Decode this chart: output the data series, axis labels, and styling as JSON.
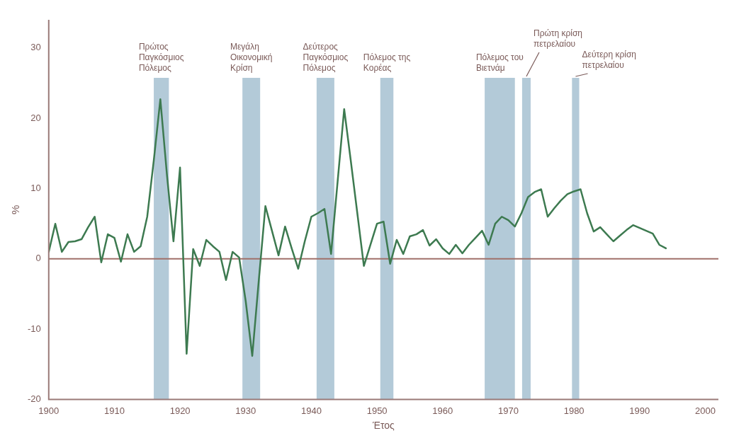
{
  "chart_data": {
    "type": "line",
    "xlabel": "Έτος",
    "ylabel": "%",
    "x": [
      1900,
      1901,
      1902,
      1903,
      1904,
      1905,
      1906,
      1907,
      1908,
      1909,
      1910,
      1911,
      1912,
      1913,
      1914,
      1915,
      1916,
      1917,
      1918,
      1919,
      1920,
      1921,
      1922,
      1923,
      1924,
      1925,
      1926,
      1927,
      1928,
      1929,
      1930,
      1931,
      1932,
      1933,
      1934,
      1935,
      1936,
      1937,
      1938,
      1939,
      1940,
      1941,
      1942,
      1943,
      1944,
      1945,
      1946,
      1947,
      1948,
      1949,
      1950,
      1951,
      1952,
      1953,
      1954,
      1955,
      1956,
      1957,
      1958,
      1959,
      1960,
      1961,
      1962,
      1963,
      1964,
      1965,
      1966,
      1967,
      1968,
      1969,
      1970,
      1971,
      1972,
      1973,
      1974,
      1975,
      1976,
      1977,
      1978,
      1979,
      1980,
      1981,
      1982,
      1983,
      1984,
      1985,
      1986,
      1987,
      1988,
      1989,
      1990,
      1991,
      1992,
      1993,
      1994
    ],
    "series": [
      {
        "color": "#3d7a50",
        "values": [
          1,
          5,
          1,
          2.4,
          2.5,
          2.8,
          4.5,
          6,
          -0.5,
          3.5,
          3,
          -0.4,
          3.5,
          1,
          1.8,
          6,
          14,
          22.7,
          12,
          2.5,
          13,
          -13.5,
          1.4,
          -1,
          2.7,
          1.8,
          1,
          -3,
          1,
          0.2,
          -6,
          -13.8,
          -3,
          7.5,
          4,
          0.5,
          4.6,
          1.5,
          -1.4,
          2.5,
          6,
          6.5,
          7.1,
          0.7,
          11,
          21.3,
          14,
          6.5,
          -1,
          2,
          5,
          5.3,
          -0.7,
          2.7,
          0.7,
          3.2,
          3.5,
          4.1,
          1.9,
          2.8,
          1.5,
          0.7,
          2,
          0.8,
          2,
          3,
          4,
          2,
          5,
          6,
          5.5,
          4.6,
          6.5,
          8.8,
          9.5,
          9.9,
          6,
          7.2,
          8.3,
          9.2,
          9.6,
          9.9,
          6.5,
          3.9,
          4.5,
          3.5,
          2.5,
          3.3,
          4.1,
          4.8,
          4.4,
          4,
          3.6,
          2,
          1.5
        ]
      }
    ],
    "xlim": [
      1900,
      2002
    ],
    "xticks": [
      1900,
      1910,
      1920,
      1930,
      1940,
      1950,
      1960,
      1970,
      1980,
      1990,
      2000
    ],
    "ylim": [
      -20,
      34
    ],
    "yticks": [
      -20,
      -10,
      0,
      10,
      20,
      30
    ],
    "grid": false,
    "legend": false,
    "marker": "none",
    "line_style": "solid",
    "ref_lines": [
      {
        "axis": "y",
        "value": 0,
        "color": "#a0706a"
      }
    ],
    "bands": [
      {
        "axis": "x",
        "from": 1916,
        "to": 1918.3,
        "label": "Πρώτος Παγκόσμιος Πόλεμος",
        "color": "#b3cad8"
      },
      {
        "axis": "x",
        "from": 1929.5,
        "to": 1932.2,
        "label": "Μεγάλη Οικονομική Κρίση",
        "color": "#b3cad8"
      },
      {
        "axis": "x",
        "from": 1940.8,
        "to": 1943.5,
        "label": "Δεύτερος Παγκόσμιος Πόλεμος",
        "color": "#b3cad8"
      },
      {
        "axis": "x",
        "from": 1950.5,
        "to": 1952.5,
        "label": "Πόλεμος της Κορέας",
        "color": "#b3cad8"
      },
      {
        "axis": "x",
        "from": 1966.4,
        "to": 1971,
        "label": "Πόλεμος του Βιετνάμ",
        "color": "#b3cad8"
      },
      {
        "axis": "x",
        "from": 1972.1,
        "to": 1973.4,
        "label": "Πρώτη κρίση πετρελαίου",
        "color": "#b3cad8"
      },
      {
        "axis": "x",
        "from": 1979.7,
        "to": 1980.8,
        "label": "Δεύτερη κρίση πετρελαίου",
        "color": "#b3cad8"
      }
    ]
  }
}
